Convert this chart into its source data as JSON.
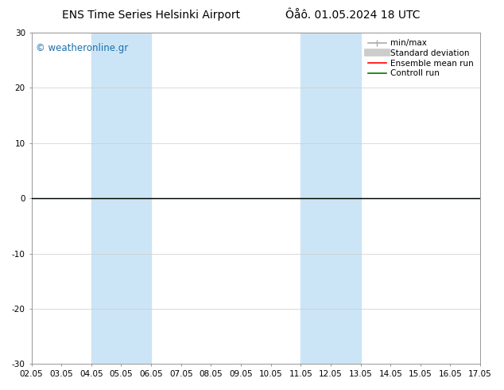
{
  "title_left": "ENS Time Series Helsinki Airport",
  "title_right": "Ôåô. 01.05.2024 18 UTC",
  "ylim": [
    -30,
    30
  ],
  "yticks": [
    -30,
    -20,
    -10,
    0,
    10,
    20,
    30
  ],
  "xtick_labels": [
    "02.05",
    "03.05",
    "04.05",
    "05.05",
    "06.05",
    "07.05",
    "08.05",
    "09.05",
    "10.05",
    "11.05",
    "12.05",
    "13.05",
    "14.05",
    "15.05",
    "16.05",
    "17.05"
  ],
  "shaded_bands": [
    {
      "xstart": "04.05",
      "xend": "06.05"
    },
    {
      "xstart": "11.05",
      "xend": "13.05"
    }
  ],
  "band_color": "#cce5f6",
  "watermark": "© weatheronline.gr",
  "watermark_color": "#1a6fad",
  "legend_items": [
    {
      "label": "min/max",
      "color": "#aaaaaa",
      "lw": 1.2,
      "type": "minmax"
    },
    {
      "label": "Standard deviation",
      "color": "#cccccc",
      "lw": 7,
      "type": "band"
    },
    {
      "label": "Ensemble mean run",
      "color": "#ff0000",
      "lw": 1.2,
      "type": "line"
    },
    {
      "label": "Controll run",
      "color": "#007700",
      "lw": 1.2,
      "type": "line"
    }
  ],
  "background_color": "#ffffff",
  "grid_color": "#cccccc",
  "zero_line_color": "#000000",
  "control_run_color": "#007700",
  "title_fontsize": 10,
  "tick_fontsize": 7.5,
  "watermark_fontsize": 8.5,
  "legend_fontsize": 7.5
}
